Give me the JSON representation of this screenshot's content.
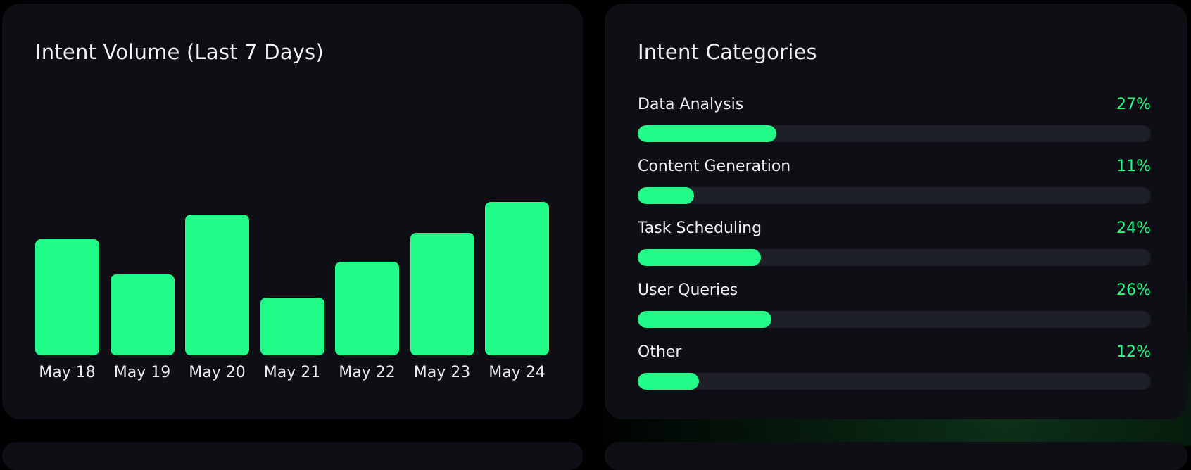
{
  "volume_card": {
    "title": "Intent Volume (Last 7 Days)"
  },
  "chart_data": {
    "type": "bar",
    "title": "Intent Volume (Last 7 Days)",
    "categories": [
      "May 18",
      "May 19",
      "May 20",
      "May 21",
      "May 22",
      "May 23",
      "May 24"
    ],
    "values": [
      165,
      115,
      200,
      82,
      133,
      174,
      218
    ],
    "color": "#22fb87",
    "grid": false,
    "xlabel": "",
    "ylabel": ""
  },
  "categories_card": {
    "title": "Intent Categories",
    "items": [
      {
        "label": "Data Analysis",
        "percent_label": "27%",
        "percent": 27
      },
      {
        "label": "Content Generation",
        "percent_label": "11%",
        "percent": 11
      },
      {
        "label": "Task Scheduling",
        "percent_label": "24%",
        "percent": 24
      },
      {
        "label": "User Queries",
        "percent_label": "26%",
        "percent": 26
      },
      {
        "label": "Other",
        "percent_label": "12%",
        "percent": 12
      }
    ]
  },
  "colors": {
    "accent": "#22fb87",
    "card_bg": "#0d0f15",
    "track_bg": "#1d2029",
    "page_bg": "#000000"
  }
}
